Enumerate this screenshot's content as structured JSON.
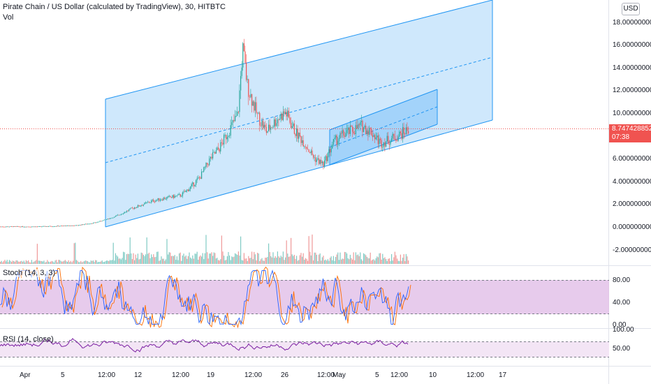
{
  "header": {
    "symbol_title": "Pirate Chain / US Dollar (calculated by TradingView), 30, HITBTC",
    "volume_label": "Vol",
    "currency_button": "USD"
  },
  "price_axis": {
    "labels": [
      "18.0000000000",
      "16.0000000000",
      "14.0000000000",
      "12.0000000000",
      "10.0000000000",
      "6.0000000000",
      "4.0000000000",
      "2.0000000000",
      "0.0000000000",
      "-2.0000000000"
    ],
    "current_price": "8.7474288521",
    "countdown": "07:38"
  },
  "stoch": {
    "label": "Stoch (14, 3, 3)",
    "axis_labels": [
      "80.00",
      "40.00",
      "0.00"
    ]
  },
  "rsi": {
    "label": "RSI (14, close)",
    "axis_labels": [
      "100.00",
      "50.00"
    ]
  },
  "time_axis": {
    "labels": [
      "Apr",
      "5",
      "12:00",
      "12",
      "12:00",
      "19",
      "12:00",
      "26",
      "12:00",
      "May",
      "5",
      "12:00",
      "10",
      "12:00",
      "17"
    ]
  },
  "colors": {
    "up": "#26a69a",
    "down": "#ef5350",
    "channel_line": "#2196f3",
    "channel_fill": "#bbdefb",
    "stoch_band": "#e1bee7",
    "rsi_line": "#7b1fa2",
    "price_tag": "#f05350"
  },
  "chart_data": {
    "type": "candlestick",
    "title": "Pirate Chain / US Dollar (calculated by TradingView), 30, HITBTC",
    "x_ticks": [
      "Apr",
      "5",
      "12:00",
      "12",
      "12:00",
      "19",
      "12:00",
      "26",
      "12:00",
      "May",
      "5",
      "12:00",
      "10",
      "12:00",
      "17"
    ],
    "y_ticks": [
      18,
      16,
      14,
      12,
      10,
      6,
      4,
      2,
      0,
      -2
    ],
    "ylim": [
      -2,
      18
    ],
    "last_price": 8.7474288521,
    "price_path": [
      [
        0,
        0.15
      ],
      [
        4,
        0.15
      ],
      [
        6,
        0.2
      ],
      [
        8,
        0.25
      ],
      [
        10,
        0.5
      ],
      [
        12,
        1.0
      ],
      [
        14,
        1.8
      ],
      [
        16,
        2.4
      ],
      [
        17,
        2.6
      ],
      [
        19,
        2.9
      ],
      [
        20,
        3.6
      ],
      [
        21,
        4.5
      ],
      [
        22,
        6.0
      ],
      [
        23,
        7.0
      ],
      [
        24,
        8.5
      ],
      [
        25,
        10.0
      ],
      [
        25.5,
        15.8
      ],
      [
        26,
        12.5
      ],
      [
        27,
        10.0
      ],
      [
        28,
        8.5
      ],
      [
        29,
        9.5
      ],
      [
        30,
        10.2
      ],
      [
        31,
        8.5
      ],
      [
        32,
        7.5
      ],
      [
        33,
        6.2
      ],
      [
        34,
        5.6
      ],
      [
        35,
        7.5
      ],
      [
        36,
        8.2
      ],
      [
        37,
        8.6
      ],
      [
        38,
        9.0
      ],
      [
        39,
        8.5
      ],
      [
        40,
        7.5
      ],
      [
        41,
        7.8
      ],
      [
        42,
        8.2
      ],
      [
        43,
        8.75
      ]
    ],
    "stoch_levels": [
      80,
      20
    ],
    "rsi_levels": [
      70,
      30
    ]
  }
}
